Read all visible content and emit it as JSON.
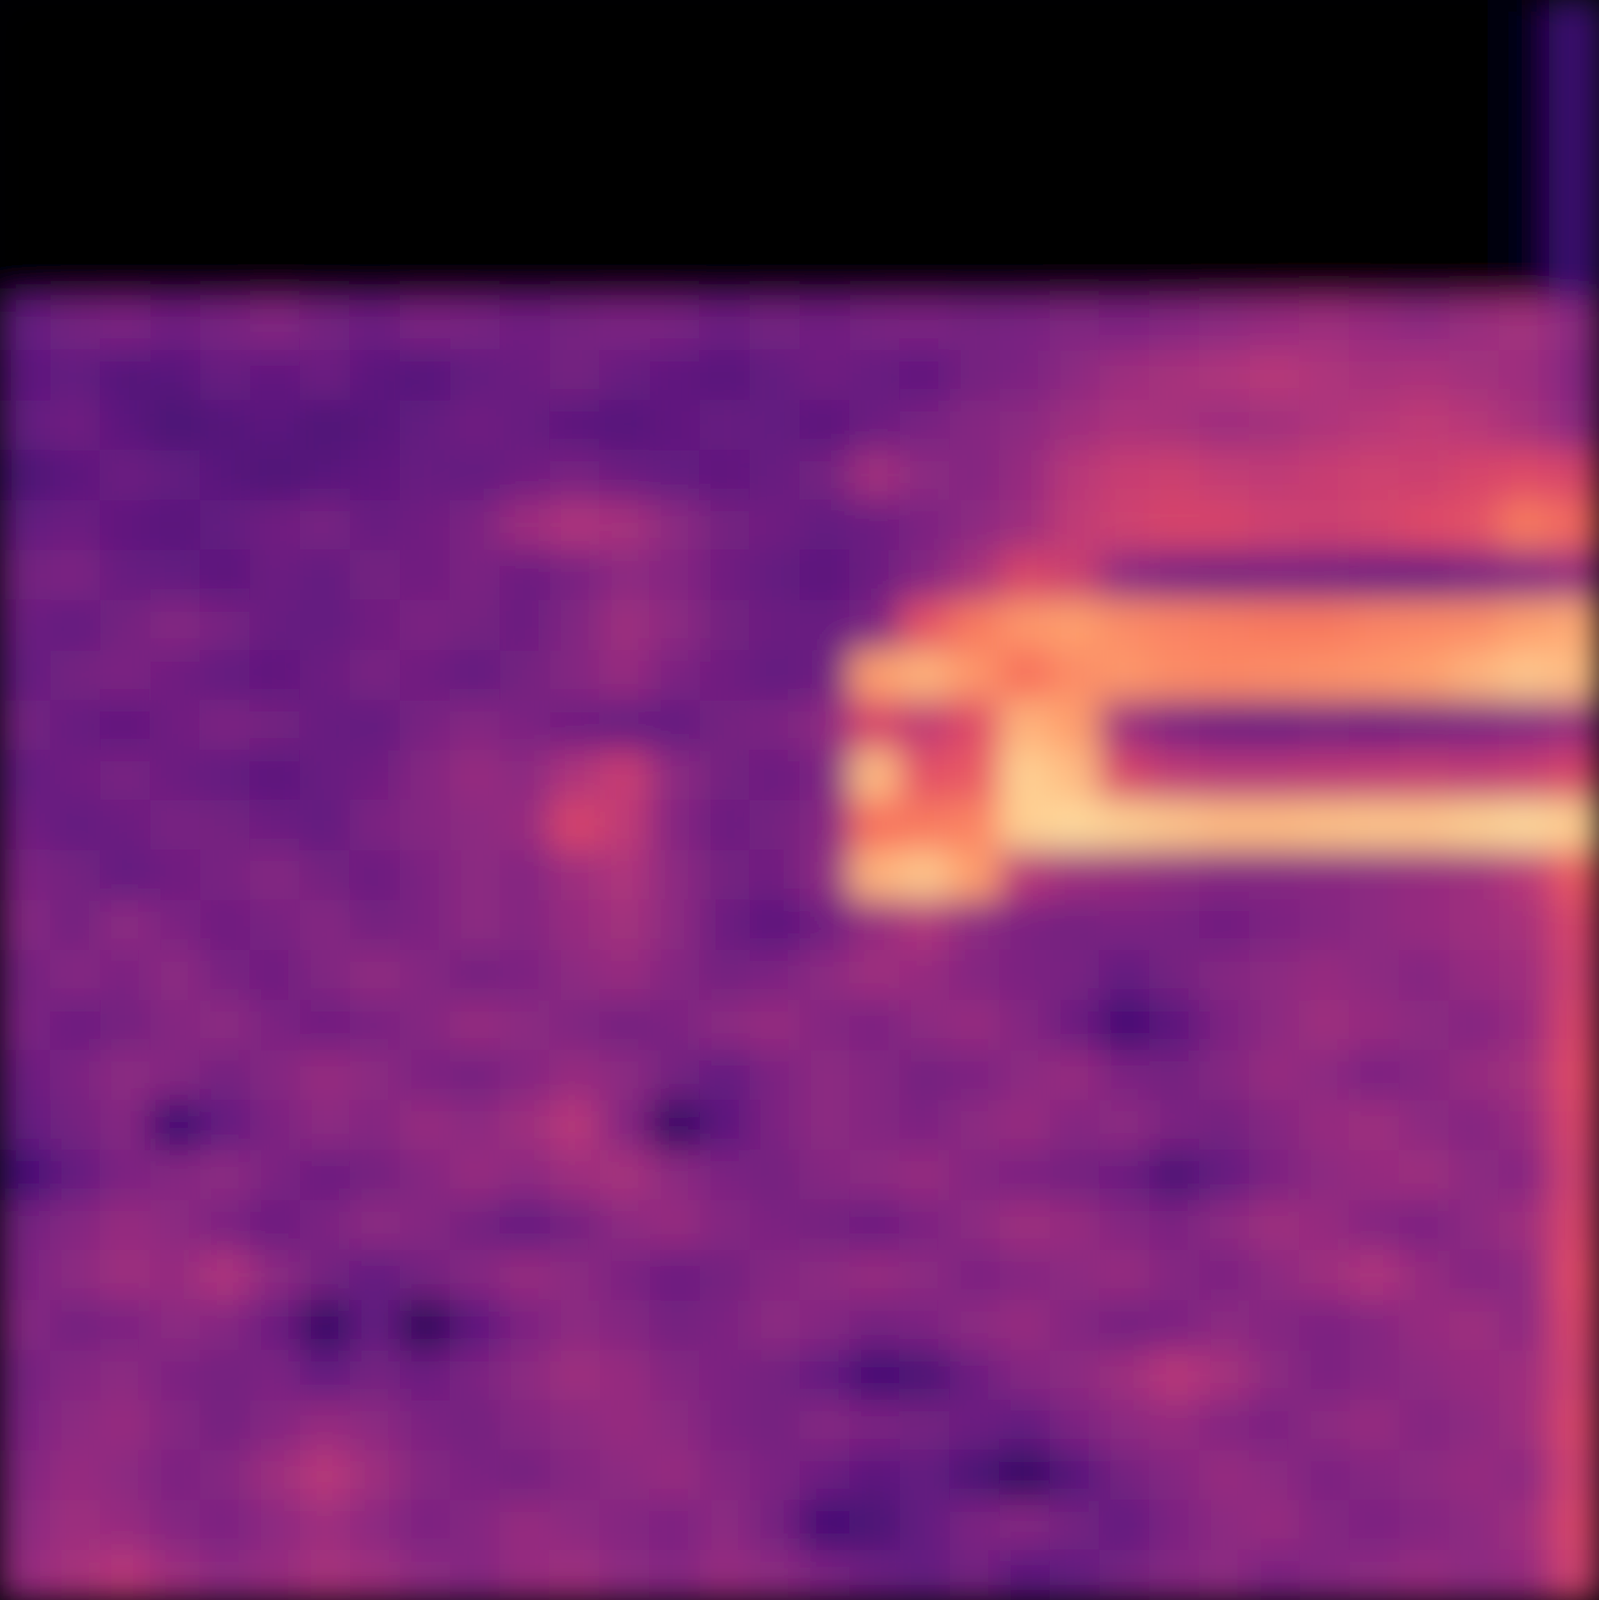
{
  "chart_data": {
    "type": "heatmap",
    "tick_labels": false,
    "zlim": [
      0,
      100
    ],
    "cells": [
      [
        0,
        0,
        0,
        0,
        0,
        0,
        0,
        0,
        0,
        0,
        0,
        0,
        0,
        0,
        0,
        0,
        0,
        0,
        0,
        0,
        0,
        0,
        0,
        0,
        0,
        0,
        0,
        0,
        0,
        0,
        3,
        20
      ],
      [
        0,
        0,
        0,
        0,
        0,
        0,
        0,
        0,
        0,
        0,
        0,
        0,
        0,
        0,
        0,
        0,
        0,
        0,
        0,
        0,
        0,
        0,
        0,
        0,
        0,
        0,
        0,
        0,
        0,
        0,
        3,
        20
      ],
      [
        0,
        0,
        0,
        0,
        0,
        0,
        0,
        0,
        0,
        0,
        0,
        0,
        0,
        0,
        0,
        0,
        0,
        0,
        0,
        0,
        0,
        0,
        0,
        0,
        0,
        0,
        0,
        0,
        0,
        0,
        3,
        20
      ],
      [
        0,
        0,
        0,
        0,
        0,
        0,
        0,
        0,
        0,
        0,
        0,
        0,
        0,
        0,
        0,
        0,
        0,
        0,
        0,
        0,
        0,
        0,
        0,
        0,
        0,
        0,
        0,
        0,
        0,
        0,
        3,
        20
      ],
      [
        0,
        0,
        0,
        0,
        0,
        0,
        0,
        0,
        0,
        0,
        0,
        0,
        0,
        0,
        0,
        0,
        0,
        0,
        0,
        0,
        0,
        0,
        0,
        0,
        0,
        0,
        0,
        0,
        0,
        0,
        3,
        20
      ],
      [
        0,
        0,
        0,
        0,
        0,
        0,
        0,
        0,
        0,
        0,
        0,
        0,
        0,
        0,
        0,
        0,
        0,
        0,
        0,
        0,
        0,
        0,
        0,
        0,
        0,
        0,
        0,
        0,
        0,
        0,
        3,
        20
      ],
      [
        30,
        34,
        36,
        33,
        35,
        38,
        34,
        32,
        36,
        35,
        33,
        34,
        36,
        35,
        32,
        34,
        33,
        35,
        36,
        34,
        35,
        37,
        36,
        38,
        40,
        42,
        44,
        42,
        40,
        43,
        45,
        40
      ],
      [
        28,
        30,
        26,
        27,
        31,
        29,
        32,
        28,
        26,
        30,
        32,
        34,
        31,
        29,
        27,
        30,
        33,
        31,
        29,
        34,
        36,
        40,
        44,
        46,
        48,
        50,
        48,
        46,
        47,
        45,
        44,
        38
      ],
      [
        30,
        33,
        28,
        24,
        26,
        28,
        25,
        27,
        30,
        33,
        31,
        28,
        26,
        29,
        31,
        30,
        28,
        32,
        35,
        38,
        40,
        44,
        47,
        46,
        44,
        45,
        48,
        50,
        52,
        50,
        46,
        40
      ],
      [
        24,
        28,
        32,
        30,
        27,
        25,
        27,
        29,
        31,
        30,
        33,
        35,
        32,
        30,
        29,
        31,
        34,
        45,
        40,
        38,
        42,
        50,
        54,
        55,
        53,
        52,
        54,
        56,
        55,
        58,
        60,
        58
      ],
      [
        30,
        32,
        29,
        27,
        30,
        33,
        35,
        31,
        33,
        36,
        44,
        48,
        46,
        40,
        34,
        33,
        30,
        32,
        36,
        40,
        44,
        52,
        56,
        58,
        58,
        56,
        55,
        57,
        60,
        62,
        72,
        68
      ],
      [
        34,
        36,
        31,
        30,
        28,
        32,
        30,
        34,
        33,
        36,
        32,
        35,
        40,
        38,
        33,
        30,
        28,
        32,
        38,
        46,
        58,
        55,
        40,
        36,
        34,
        35,
        34,
        33,
        32,
        35,
        38,
        42
      ],
      [
        32,
        30,
        34,
        38,
        35,
        31,
        30,
        33,
        36,
        34,
        32,
        37,
        44,
        40,
        34,
        32,
        31,
        36,
        62,
        72,
        78,
        80,
        76,
        74,
        73,
        72,
        72,
        74,
        75,
        76,
        80,
        82
      ],
      [
        30,
        34,
        36,
        33,
        30,
        29,
        32,
        35,
        33,
        30,
        34,
        38,
        42,
        36,
        33,
        30,
        32,
        80,
        84,
        78,
        70,
        76,
        78,
        76,
        75,
        76,
        77,
        78,
        80,
        84,
        88,
        86
      ],
      [
        34,
        31,
        29,
        33,
        36,
        34,
        31,
        30,
        35,
        38,
        36,
        33,
        31,
        30,
        34,
        36,
        40,
        58,
        52,
        60,
        84,
        80,
        44,
        36,
        33,
        32,
        34,
        33,
        34,
        36,
        38,
        42
      ],
      [
        30,
        33,
        35,
        32,
        30,
        28,
        31,
        33,
        38,
        42,
        40,
        48,
        54,
        40,
        34,
        32,
        36,
        86,
        62,
        64,
        90,
        86,
        58,
        52,
        50,
        50,
        51,
        52,
        53,
        52,
        54,
        58
      ],
      [
        33,
        30,
        32,
        35,
        34,
        32,
        30,
        36,
        38,
        40,
        42,
        58,
        52,
        38,
        32,
        34,
        38,
        70,
        72,
        74,
        90,
        92,
        90,
        88,
        86,
        86,
        87,
        88,
        88,
        90,
        92,
        90
      ],
      [
        36,
        34,
        30,
        33,
        35,
        38,
        34,
        32,
        36,
        40,
        38,
        44,
        48,
        40,
        34,
        33,
        40,
        84,
        88,
        80,
        50,
        44,
        42,
        40,
        38,
        38,
        39,
        40,
        42,
        44,
        50,
        64
      ],
      [
        38,
        34,
        40,
        36,
        33,
        35,
        38,
        34,
        36,
        40,
        38,
        42,
        45,
        40,
        32,
        28,
        33,
        42,
        48,
        40,
        36,
        34,
        36,
        35,
        33,
        36,
        38,
        40,
        42,
        44,
        46,
        58
      ],
      [
        34,
        38,
        36,
        40,
        35,
        33,
        37,
        41,
        38,
        34,
        36,
        40,
        42,
        38,
        34,
        36,
        40,
        44,
        42,
        38,
        36,
        35,
        30,
        34,
        38,
        40,
        42,
        40,
        38,
        42,
        44,
        56
      ],
      [
        36,
        32,
        34,
        38,
        40,
        36,
        33,
        35,
        38,
        42,
        40,
        37,
        34,
        36,
        40,
        42,
        38,
        36,
        40,
        42,
        38,
        32,
        22,
        28,
        36,
        40,
        44,
        42,
        40,
        38,
        42,
        58
      ],
      [
        32,
        36,
        40,
        38,
        34,
        38,
        42,
        40,
        36,
        34,
        38,
        42,
        40,
        34,
        30,
        36,
        40,
        38,
        34,
        36,
        40,
        42,
        36,
        34,
        38,
        42,
        40,
        36,
        38,
        42,
        45,
        60
      ],
      [
        30,
        34,
        38,
        20,
        30,
        36,
        40,
        38,
        42,
        40,
        44,
        50,
        38,
        18,
        28,
        36,
        40,
        38,
        36,
        40,
        42,
        38,
        40,
        36,
        34,
        38,
        42,
        44,
        40,
        38,
        42,
        58
      ],
      [
        22,
        30,
        36,
        38,
        40,
        36,
        32,
        34,
        38,
        42,
        40,
        44,
        46,
        40,
        36,
        34,
        38,
        40,
        42,
        38,
        36,
        34,
        32,
        24,
        30,
        36,
        40,
        42,
        44,
        40,
        38,
        56
      ],
      [
        34,
        38,
        42,
        40,
        36,
        32,
        36,
        40,
        38,
        34,
        30,
        34,
        40,
        42,
        38,
        36,
        34,
        32,
        36,
        40,
        44,
        42,
        38,
        36,
        40,
        44,
        42,
        38,
        36,
        40,
        44,
        58
      ],
      [
        36,
        40,
        44,
        42,
        48,
        40,
        34,
        30,
        34,
        38,
        42,
        40,
        36,
        32,
        34,
        38,
        40,
        42,
        40,
        36,
        38,
        40,
        42,
        38,
        36,
        40,
        44,
        48,
        42,
        38,
        40,
        60
      ],
      [
        38,
        34,
        36,
        40,
        38,
        32,
        18,
        30,
        16,
        28,
        36,
        40,
        38,
        34,
        36,
        40,
        38,
        34,
        36,
        40,
        42,
        38,
        34,
        36,
        40,
        38,
        36,
        38,
        42,
        44,
        40,
        58
      ],
      [
        34,
        38,
        40,
        36,
        34,
        36,
        30,
        34,
        32,
        36,
        40,
        44,
        42,
        38,
        36,
        34,
        30,
        22,
        24,
        32,
        38,
        40,
        44,
        50,
        46,
        40,
        36,
        38,
        40,
        42,
        44,
        56
      ],
      [
        36,
        40,
        42,
        38,
        34,
        38,
        42,
        40,
        36,
        34,
        38,
        40,
        42,
        40,
        36,
        34,
        38,
        36,
        34,
        32,
        30,
        36,
        40,
        42,
        38,
        36,
        40,
        42,
        38,
        40,
        44,
        58
      ],
      [
        38,
        42,
        40,
        36,
        38,
        44,
        50,
        44,
        38,
        36,
        34,
        38,
        40,
        42,
        38,
        36,
        32,
        28,
        30,
        24,
        18,
        26,
        34,
        38,
        42,
        40,
        36,
        38,
        40,
        42,
        40,
        56
      ],
      [
        40,
        44,
        42,
        38,
        36,
        40,
        44,
        40,
        36,
        38,
        42,
        40,
        38,
        36,
        40,
        34,
        22,
        24,
        30,
        36,
        38,
        34,
        30,
        36,
        40,
        42,
        38,
        36,
        38,
        40,
        44,
        58
      ],
      [
        42,
        46,
        50,
        44,
        40,
        42,
        46,
        44,
        40,
        38,
        42,
        44,
        40,
        38,
        42,
        40,
        36,
        32,
        30,
        34,
        28,
        30,
        34,
        38,
        40,
        36,
        38,
        40,
        42,
        40,
        42,
        56
      ]
    ]
  }
}
